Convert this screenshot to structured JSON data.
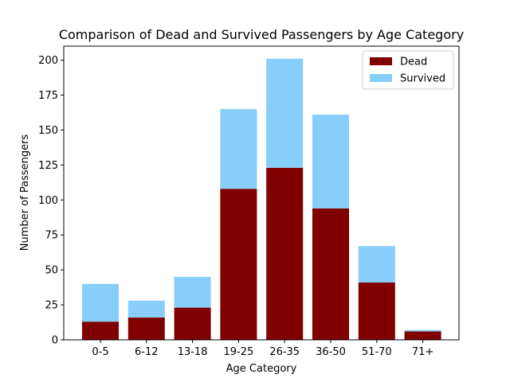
{
  "chart_data": {
    "type": "bar",
    "stacked": true,
    "title": "Comparison of Dead and Survived Passengers by Age Category",
    "xlabel": "Age Category",
    "ylabel": "Number of Passengers",
    "categories": [
      "0-5",
      "6-12",
      "13-18",
      "19-25",
      "26-35",
      "36-50",
      "51-70",
      "71+"
    ],
    "series": [
      {
        "name": "Dead",
        "color": "#800000",
        "values": [
          13,
          16,
          23,
          108,
          123,
          94,
          41,
          6
        ]
      },
      {
        "name": "Survived",
        "color": "#87cefa",
        "values": [
          27,
          12,
          22,
          57,
          78,
          67,
          26,
          1
        ]
      }
    ],
    "ylim": [
      0,
      210
    ],
    "yticks": [
      0,
      25,
      50,
      75,
      100,
      125,
      150,
      175,
      200
    ],
    "grid": false,
    "legend": "top-right"
  }
}
